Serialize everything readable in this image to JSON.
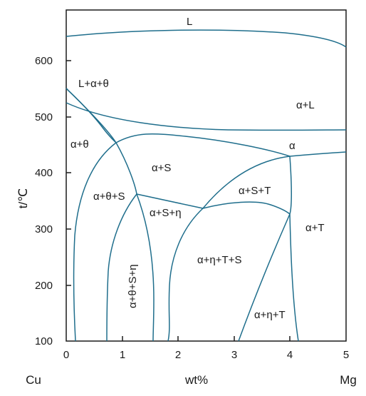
{
  "y_axis": {
    "label": "t/℃",
    "ticks": [
      "600",
      "500",
      "400",
      "300",
      "200",
      "100"
    ]
  },
  "x_axis": {
    "label": "wt%",
    "ticks": [
      "0",
      "1",
      "2",
      "3",
      "4",
      "5"
    ],
    "left_end": "Cu",
    "right_end": "Mg"
  },
  "regions": {
    "L": "L",
    "L_alpha_theta": "L+α+θ",
    "alpha_L": "α+L",
    "alpha_theta": "α+θ",
    "alpha": "α",
    "alpha_S": "α+S",
    "alpha_theta_S": "α+θ+S",
    "alpha_S_T": "α+S+T",
    "alpha_S_eta": "α+S+η",
    "alpha_T": "α+T",
    "alpha_eta_T_S": "α+η+T+S",
    "alpha_theta_S_eta": "α+θ+S+η",
    "alpha_eta_T": "α+η+T"
  }
}
